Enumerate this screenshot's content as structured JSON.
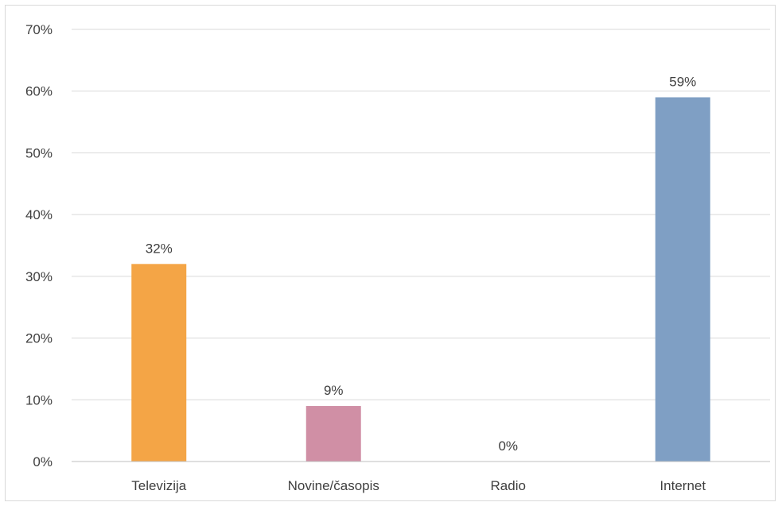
{
  "chart_data": {
    "type": "bar",
    "categories": [
      "Televizija",
      "Novine/časopis",
      "Radio",
      "Internet"
    ],
    "values": [
      32,
      9,
      0,
      59
    ],
    "data_labels": [
      "32%",
      "9%",
      "0%",
      "59%"
    ],
    "colors": [
      "#f4a546",
      "#d08fa5",
      "#a9c4de",
      "#7f9fc4"
    ],
    "ylim": [
      0,
      70
    ],
    "yticks": [
      0,
      10,
      20,
      30,
      40,
      50,
      60,
      70
    ],
    "ytick_labels": [
      "0%",
      "10%",
      "20%",
      "30%",
      "40%",
      "50%",
      "60%",
      "70%"
    ],
    "grid": true,
    "title": "",
    "xlabel": "",
    "ylabel": ""
  }
}
